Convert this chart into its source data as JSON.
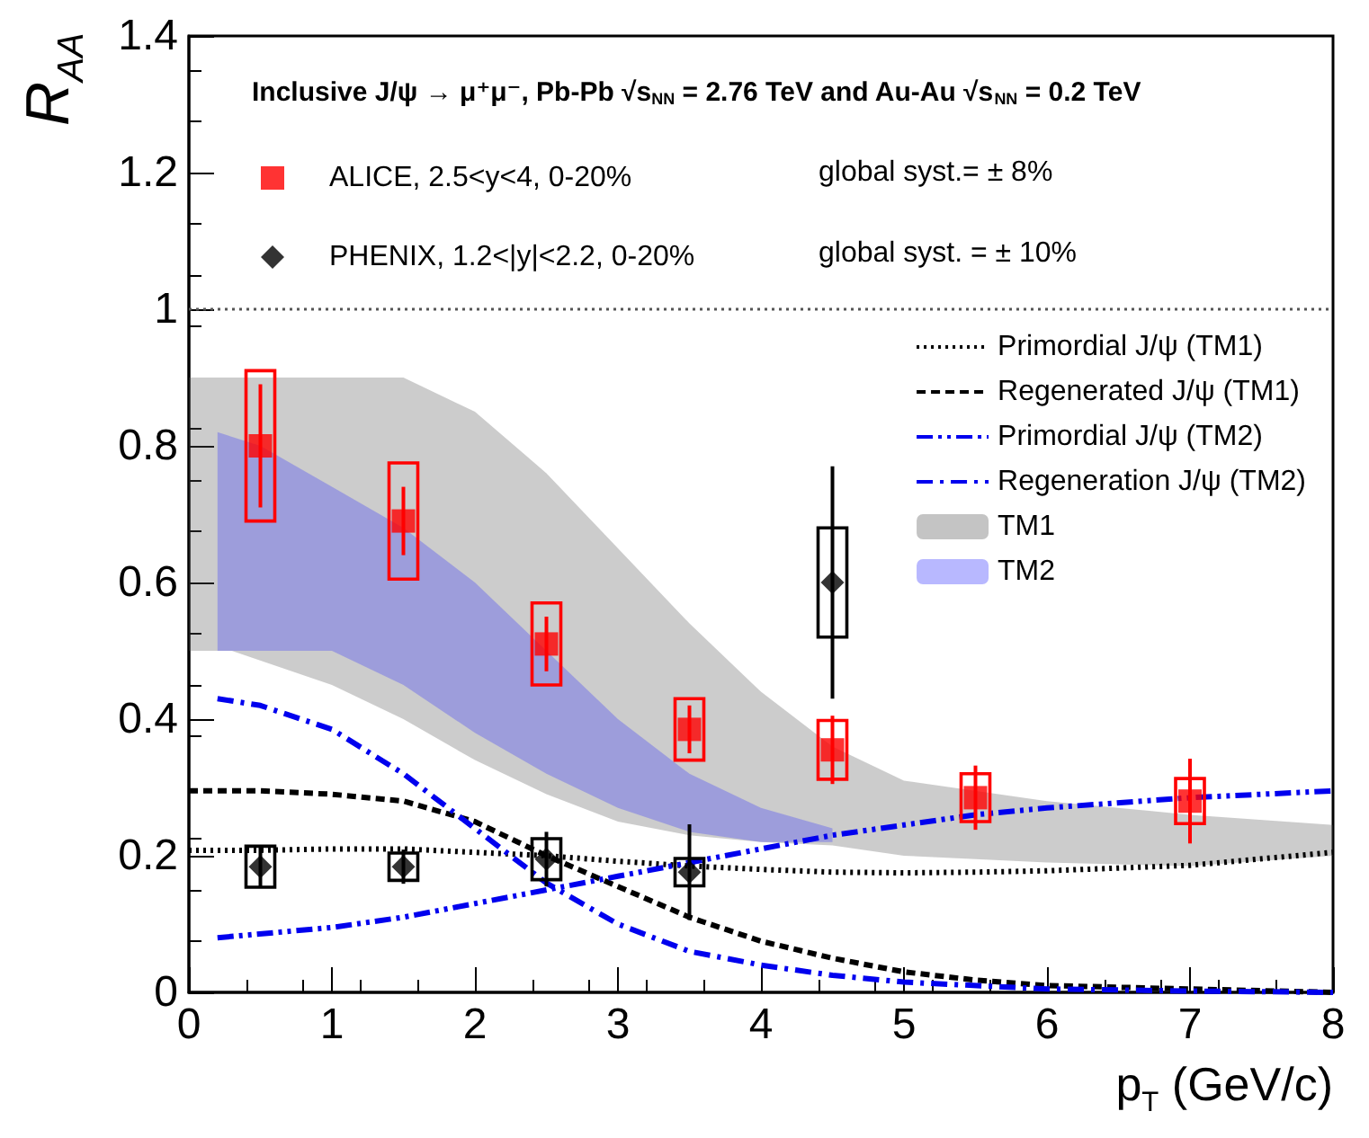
{
  "chart_data": {
    "type": "scatter",
    "title": "Inclusive J/ψ → μ⁺μ⁻, Pb-Pb √s$_{NN}$ = 2.76 TeV and Au-Au √s$_{NN}$ = 0.2 TeV",
    "xlabel": "p$_{T}$ (GeV/c)",
    "ylabel": "R$_{AA}$",
    "annotations": [
      "global syst.= ± 8%",
      "global syst. = ± 10%"
    ],
    "xlim": [
      0,
      8
    ],
    "xticks": [
      0,
      1,
      2,
      3,
      4,
      5,
      6,
      7,
      8
    ],
    "ylim": [
      0,
      1.4
    ],
    "yticks": [
      0,
      0.2,
      0.4,
      0.6,
      0.8,
      1,
      1.2,
      1.4
    ],
    "grid": false,
    "legend": "top right",
    "ref_lines": [
      {
        "axis": "y",
        "value": 1,
        "color": "#555555",
        "line_style": "dotted"
      }
    ],
    "series": [
      {
        "type": "area",
        "name": "TM1",
        "color": "#555555",
        "x": [
          0,
          0.3,
          1,
          1.5,
          2,
          2.5,
          3,
          3.5,
          4,
          4.5,
          5,
          6,
          7,
          8
        ],
        "values": [
          null,
          null,
          null,
          null,
          null,
          null,
          null,
          null,
          null,
          null,
          null,
          null,
          null,
          null
        ],
        "lower": [
          0.5,
          0.5,
          0.45,
          0.4,
          0.34,
          0.29,
          0.25,
          0.23,
          0.22,
          0.215,
          0.2,
          0.19,
          0.185,
          0.2
        ],
        "upper": [
          0.9,
          0.9,
          0.9,
          0.9,
          0.85,
          0.76,
          0.65,
          0.54,
          0.44,
          0.36,
          0.31,
          0.28,
          0.26,
          0.245
        ]
      },
      {
        "type": "area",
        "name": "TM2",
        "color": "#3333ff",
        "x": [
          0.2,
          0.5,
          1,
          1.5,
          2,
          2.5,
          3,
          3.5,
          4,
          4.5
        ],
        "values": [
          null,
          null,
          null,
          null,
          null,
          null,
          null,
          null,
          null,
          null
        ],
        "lower": [
          0.5,
          0.5,
          0.5,
          0.45,
          0.38,
          0.32,
          0.27,
          0.235,
          0.22,
          0.22
        ],
        "upper": [
          0.82,
          0.8,
          0.74,
          0.68,
          0.6,
          0.5,
          0.4,
          0.32,
          0.27,
          0.24
        ]
      },
      {
        "type": "line",
        "name": "Primordial J/ψ (TM1)",
        "color": "#000000",
        "line_style": "dotted",
        "x": [
          0,
          0.5,
          1,
          1.5,
          2,
          2.5,
          3,
          3.5,
          4,
          4.5,
          5,
          5.5,
          6,
          7,
          8
        ],
        "values": [
          0.208,
          0.208,
          0.21,
          0.21,
          0.205,
          0.2,
          0.192,
          0.185,
          0.18,
          0.176,
          0.175,
          0.176,
          0.178,
          0.186,
          0.205
        ]
      },
      {
        "type": "line",
        "name": "Regenerated J/ψ (TM1)",
        "color": "#000000",
        "line_style": "dashed",
        "x": [
          0,
          0.5,
          1,
          1.5,
          2,
          2.5,
          3,
          3.5,
          4,
          4.5,
          5,
          5.5,
          6,
          7,
          8
        ],
        "values": [
          0.295,
          0.295,
          0.29,
          0.28,
          0.25,
          0.2,
          0.155,
          0.11,
          0.075,
          0.05,
          0.03,
          0.018,
          0.01,
          0.005,
          0
        ]
      },
      {
        "type": "line",
        "name": "Primordial J/ψ (TM2)",
        "color": "#0000ee",
        "line_style": "dashdotdot",
        "x": [
          0.2,
          1,
          1.5,
          2,
          2.5,
          3,
          3.5,
          4,
          4.5,
          5,
          5.5,
          6,
          7,
          8
        ],
        "values": [
          0.08,
          0.095,
          0.11,
          0.13,
          0.15,
          0.17,
          0.19,
          0.21,
          0.23,
          0.245,
          0.26,
          0.27,
          0.285,
          0.295
        ]
      },
      {
        "type": "line",
        "name": "Regeneration J/ψ (TM2)",
        "color": "#0000ee",
        "line_style": "dashdot",
        "x": [
          0.2,
          0.5,
          1,
          1.5,
          2,
          2.5,
          3,
          3.5,
          4,
          4.5,
          5,
          6,
          7,
          8
        ],
        "values": [
          0.43,
          0.42,
          0.385,
          0.32,
          0.24,
          0.16,
          0.1,
          0.06,
          0.04,
          0.025,
          0.015,
          0.005,
          0.002,
          0
        ]
      },
      {
        "type": "bar",
        "color": "#ff0000",
        "x": [
          0.5,
          1.5,
          2.5,
          3.5,
          4.5,
          5.5,
          7
        ],
        "base": [
          0.69,
          0.605,
          0.45,
          0.34,
          0.312,
          0.25,
          0.247
        ],
        "values": [
          0.22,
          0.17,
          0.12,
          0.09,
          0.086,
          0.07,
          0.066
        ]
      },
      {
        "type": "bar",
        "color": "#000000",
        "x": [
          0.5,
          1.5,
          2.5,
          3.5,
          4.5
        ],
        "base": [
          0.154,
          0.164,
          0.165,
          0.156,
          0.52
        ],
        "values": [
          0.06,
          0.04,
          0.06,
          0.04,
          0.16
        ]
      },
      {
        "name": "ALICE, 2.5<y<4, 0-20%",
        "color": "#ff0000",
        "marker": "square",
        "x": [
          0.5,
          1.5,
          2.5,
          3.5,
          4.5,
          5.5,
          7
        ],
        "values": [
          0.8,
          0.69,
          0.51,
          0.385,
          0.355,
          0.285,
          0.28
        ],
        "errors": [
          0.09,
          0.05,
          0.04,
          0.035,
          0.05,
          0.047,
          0.062
        ]
      },
      {
        "name": "PHENIX, 1.2<|y|<2.2, 0-20%",
        "color": "#000000",
        "marker": "diamond",
        "x": [
          0.5,
          1.5,
          2.5,
          3.5,
          4.5
        ],
        "values": [
          0.184,
          0.184,
          0.195,
          0.176,
          0.6
        ],
        "errors": [
          0.03,
          0.025,
          0.04,
          0.07,
          0.17
        ]
      }
    ]
  }
}
